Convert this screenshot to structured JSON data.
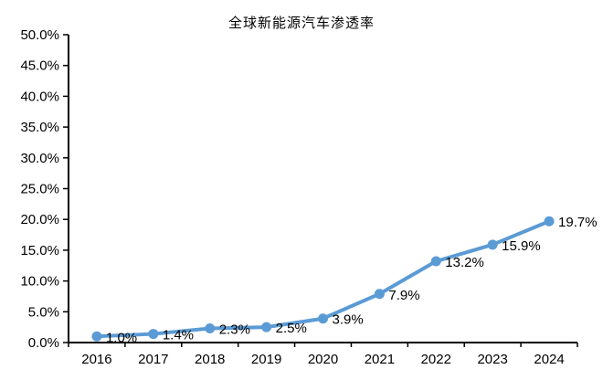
{
  "title": "全球新能源汽车渗透率",
  "chart_data": {
    "type": "line",
    "title": "全球新能源汽车渗透率",
    "categories": [
      "2016",
      "2017",
      "2018",
      "2019",
      "2020",
      "2021",
      "2022",
      "2023",
      "2024"
    ],
    "series": [
      {
        "name": "全球新能源汽车渗透率",
        "values": [
          1.0,
          1.4,
          2.3,
          2.5,
          3.9,
          7.9,
          13.2,
          15.9,
          19.7
        ],
        "data_labels": [
          "1.0%",
          "1.4%",
          "2.3%",
          "2.5%",
          "3.9%",
          "7.9%",
          "13.2%",
          "15.9%",
          "19.7%"
        ]
      }
    ],
    "xlabel": "",
    "ylabel": "",
    "ylim": [
      0,
      50
    ],
    "ytick_step": 5,
    "ytick_labels": [
      "0.0%",
      "5.0%",
      "10.0%",
      "15.0%",
      "20.0%",
      "25.0%",
      "30.0%",
      "35.0%",
      "40.0%",
      "45.0%",
      "50.0%"
    ],
    "grid": false,
    "legend_position": "none",
    "line_color": "#5B9BD5",
    "marker_color": "#5B9BD5",
    "axis_color": "#000000",
    "label_color": "#000000"
  }
}
